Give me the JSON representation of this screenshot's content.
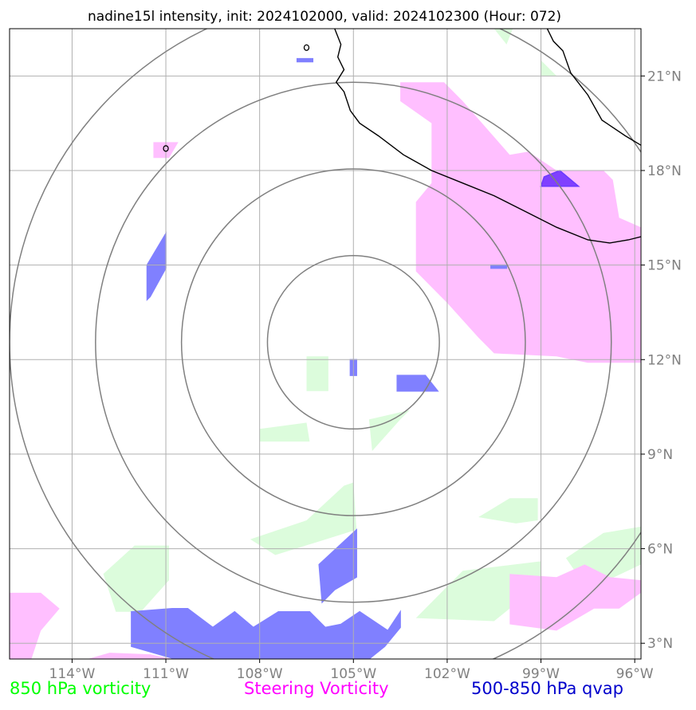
{
  "chart_data": {
    "type": "map",
    "title": "nadine15l intensity, init: 2024102000, valid: 2024102300 (Hour: 072)",
    "lon_range": [
      -116.0,
      -95.8
    ],
    "lat_range": [
      2.5,
      22.5
    ],
    "x_ticks": [
      -114,
      -111,
      -108,
      -105,
      -102,
      -99,
      -96
    ],
    "x_tick_labels": [
      "114°W",
      "111°W",
      "108°W",
      "105°W",
      "102°W",
      "99°W",
      "96°W"
    ],
    "y_ticks": [
      3,
      6,
      9,
      12,
      15,
      18,
      21
    ],
    "y_tick_labels": [
      "3°N",
      "6°N",
      "9°N",
      "12°N",
      "15°N",
      "18°N",
      "21°N"
    ],
    "grid": true,
    "center": {
      "lon": -105.0,
      "lat": 12.55
    },
    "range_rings_deg": [
      2.75,
      5.5,
      8.25,
      11.0
    ],
    "colors": {
      "vort850": "#dcfcdc",
      "steering": "#ffbfff",
      "qvap": "#8080ff",
      "qvap_dark": "#8040ff",
      "ring": "#808080",
      "grid": "#b0b0b0",
      "coast": "#000000"
    },
    "coastline": [
      [
        [
          -105.6,
          22.5
        ],
        [
          -105.4,
          22.0
        ],
        [
          -105.5,
          21.6
        ],
        [
          -105.3,
          21.2
        ],
        [
          -105.55,
          20.8
        ],
        [
          -105.3,
          20.5
        ],
        [
          -105.1,
          19.9
        ],
        [
          -104.8,
          19.5
        ],
        [
          -104.2,
          19.1
        ],
        [
          -103.4,
          18.5
        ],
        [
          -102.5,
          18.0
        ],
        [
          -101.5,
          17.6
        ],
        [
          -100.5,
          17.2
        ],
        [
          -99.5,
          16.7
        ],
        [
          -98.5,
          16.2
        ],
        [
          -97.5,
          15.8
        ],
        [
          -96.8,
          15.7
        ],
        [
          -96.2,
          15.8
        ],
        [
          -95.8,
          15.9
        ]
      ],
      [
        [
          -98.8,
          22.5
        ],
        [
          -98.6,
          22.1
        ],
        [
          -98.3,
          21.8
        ],
        [
          -98.05,
          21.1
        ],
        [
          -97.5,
          20.4
        ],
        [
          -97.05,
          19.6
        ],
        [
          -96.3,
          19.1
        ],
        [
          -95.8,
          18.8
        ]
      ]
    ],
    "islands": [
      {
        "lon": -106.5,
        "lat": 21.9
      },
      {
        "lon": -111.0,
        "lat": 18.7
      }
    ],
    "vort850_polygons": [
      [
        [
          -106.5,
          12.1
        ],
        [
          -105.8,
          12.1
        ],
        [
          -105.8,
          11.0
        ],
        [
          -106.5,
          11.0
        ]
      ],
      [
        [
          -108.0,
          9.8
        ],
        [
          -106.5,
          10.0
        ],
        [
          -106.4,
          9.4
        ],
        [
          -108.0,
          9.4
        ]
      ],
      [
        [
          -104.5,
          10.1
        ],
        [
          -103.2,
          10.4
        ],
        [
          -103.5,
          10.1
        ],
        [
          -104.4,
          9.1
        ]
      ],
      [
        [
          -108.3,
          6.3
        ],
        [
          -106.5,
          6.9
        ],
        [
          -105.3,
          8.0
        ],
        [
          -105.0,
          8.1
        ],
        [
          -104.9,
          6.6
        ],
        [
          -106.2,
          6.2
        ],
        [
          -107.5,
          5.8
        ]
      ],
      [
        [
          -113.0,
          5.2
        ],
        [
          -112.0,
          6.1
        ],
        [
          -110.9,
          6.1
        ],
        [
          -110.9,
          5.0
        ],
        [
          -111.8,
          4.0
        ],
        [
          -112.6,
          4.0
        ]
      ],
      [
        [
          -103.0,
          3.8
        ],
        [
          -101.5,
          5.3
        ],
        [
          -99.0,
          5.6
        ],
        [
          -99.0,
          4.9
        ],
        [
          -100.5,
          3.7
        ]
      ],
      [
        [
          -101.0,
          7.0
        ],
        [
          -100.0,
          7.6
        ],
        [
          -99.1,
          7.6
        ],
        [
          -99.1,
          6.9
        ],
        [
          -99.8,
          6.8
        ]
      ],
      [
        [
          -98.2,
          5.7
        ],
        [
          -97.0,
          6.5
        ],
        [
          -95.8,
          6.7
        ],
        [
          -95.8,
          5.5
        ],
        [
          -97.5,
          4.7
        ]
      ],
      [
        [
          -99.0,
          21.5
        ],
        [
          -98.5,
          21.0
        ],
        [
          -99.0,
          21.0
        ]
      ],
      [
        [
          -100.5,
          22.5
        ],
        [
          -99.9,
          22.5
        ],
        [
          -100.1,
          22.0
        ]
      ],
      [
        [
          -99.5,
          16.2
        ],
        [
          -99.0,
          16.2
        ],
        [
          -99.5,
          16.15
        ]
      ]
    ],
    "steering_polygons": [
      [
        [
          -103.5,
          20.8
        ],
        [
          -102.1,
          20.8
        ],
        [
          -101.5,
          20.2
        ],
        [
          -100.0,
          18.5
        ],
        [
          -99.4,
          18.6
        ],
        [
          -98.5,
          18.0
        ],
        [
          -97.0,
          18.0
        ],
        [
          -96.7,
          17.7
        ],
        [
          -96.5,
          16.5
        ],
        [
          -95.8,
          16.2
        ],
        [
          -95.8,
          11.9
        ],
        [
          -97.5,
          11.9
        ],
        [
          -98.5,
          12.1
        ],
        [
          -100.5,
          12.2
        ],
        [
          -101.0,
          12.7
        ],
        [
          -102.0,
          13.8
        ],
        [
          -103.0,
          14.8
        ],
        [
          -103.0,
          17.0
        ],
        [
          -102.5,
          17.6
        ],
        [
          -102.5,
          19.5
        ],
        [
          -103.5,
          20.2
        ]
      ],
      [
        [
          -100.0,
          5.2
        ],
        [
          -98.5,
          5.1
        ],
        [
          -97.6,
          5.5
        ],
        [
          -96.8,
          5.1
        ],
        [
          -95.8,
          5.0
        ],
        [
          -95.8,
          4.6
        ],
        [
          -96.5,
          4.1
        ],
        [
          -97.3,
          4.1
        ],
        [
          -98.5,
          3.4
        ],
        [
          -100.0,
          3.6
        ]
      ],
      [
        [
          -116.0,
          4.6
        ],
        [
          -115.0,
          4.6
        ],
        [
          -114.4,
          4.1
        ],
        [
          -115.0,
          3.4
        ],
        [
          -115.3,
          2.5
        ],
        [
          -116.0,
          2.5
        ]
      ],
      [
        [
          -111.4,
          18.9
        ],
        [
          -110.6,
          18.9
        ],
        [
          -110.9,
          18.4
        ],
        [
          -111.4,
          18.4
        ]
      ],
      [
        [
          -113.5,
          2.5
        ],
        [
          -110.8,
          2.5
        ],
        [
          -111.5,
          2.65
        ],
        [
          -112.8,
          2.7
        ]
      ]
    ],
    "qvap_polygons": [
      [
        [
          -111.0,
          16.0
        ],
        [
          -111.0,
          14.9
        ],
        [
          -111.5,
          14.0
        ],
        [
          -111.6,
          13.9
        ],
        [
          -111.6,
          15.0
        ]
      ],
      [
        [
          -103.6,
          11.5
        ],
        [
          -102.7,
          11.5
        ],
        [
          -102.3,
          11.0
        ],
        [
          -103.6,
          11.0
        ]
      ],
      [
        [
          -105.1,
          12.0
        ],
        [
          -104.9,
          12.0
        ],
        [
          -104.9,
          11.5
        ],
        [
          -105.1,
          11.5
        ]
      ],
      [
        [
          -104.9,
          6.6
        ],
        [
          -104.9,
          5.1
        ],
        [
          -105.6,
          4.7
        ],
        [
          -106.0,
          4.3
        ],
        [
          -106.1,
          5.5
        ]
      ],
      [
        [
          -112.1,
          4.0
        ],
        [
          -110.8,
          4.1
        ],
        [
          -110.3,
          4.1
        ],
        [
          -109.5,
          3.5
        ],
        [
          -108.8,
          4.0
        ],
        [
          -108.2,
          3.5
        ],
        [
          -107.4,
          4.0
        ],
        [
          -106.4,
          4.0
        ],
        [
          -105.9,
          3.5
        ],
        [
          -105.4,
          3.6
        ],
        [
          -104.8,
          4.0
        ],
        [
          -103.9,
          3.4
        ],
        [
          -103.5,
          4.0
        ],
        [
          -103.5,
          3.5
        ],
        [
          -104.0,
          2.9
        ],
        [
          -104.5,
          2.5
        ],
        [
          -110.7,
          2.5
        ],
        [
          -112.1,
          2.9
        ]
      ],
      [
        [
          -106.8,
          21.55
        ],
        [
          -106.3,
          21.55
        ],
        [
          -106.3,
          21.45
        ],
        [
          -106.8,
          21.45
        ]
      ],
      [
        [
          -100.6,
          15.0
        ],
        [
          -100.1,
          15.0
        ],
        [
          -100.1,
          14.9
        ],
        [
          -100.6,
          14.9
        ]
      ]
    ],
    "qvap_dark_polygons": [
      [
        [
          -98.9,
          17.8
        ],
        [
          -98.4,
          18.0
        ],
        [
          -97.8,
          17.5
        ],
        [
          -99.0,
          17.5
        ]
      ]
    ]
  },
  "legend": {
    "vort850": {
      "label": "850 hPa vorticity",
      "color": "#00ff00"
    },
    "steering": {
      "label": "Steering Vorticity",
      "color": "#ff00ff"
    },
    "qvap": {
      "label": "500-850 hPa qvap",
      "color": "#0000cc"
    }
  }
}
